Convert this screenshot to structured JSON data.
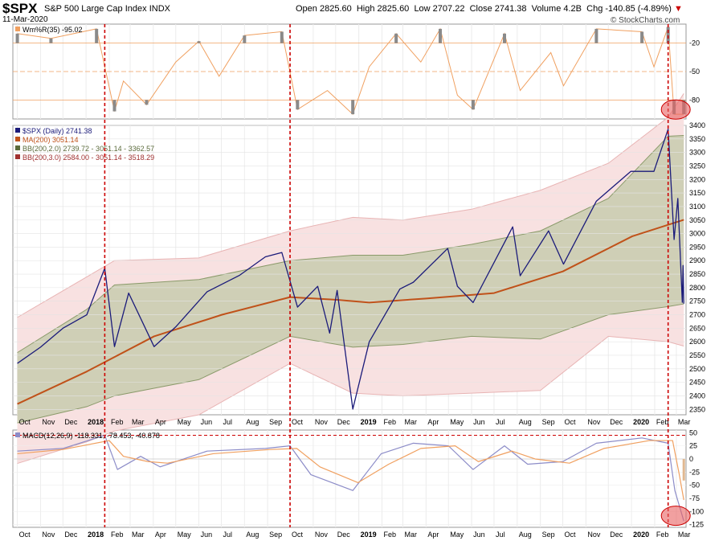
{
  "header": {
    "symbol": "$SPX",
    "description": "S&P 500 Large Cap Index",
    "exchange": "INDX",
    "date": "11-Mar-2020",
    "open": "Open 2825.60",
    "high": "High 2825.60",
    "low": "Low 2707.22",
    "close": "Close 2741.38",
    "volume": "Volume 4.2B",
    "change": "Chg -140.85 (-4.89%)",
    "change_arrow": "▼",
    "credit": "© StockCharts.com"
  },
  "colors": {
    "price": "#1b1b7a",
    "ma200": "#c0521a",
    "bb2_fill": "#cfcfb6",
    "bb2_line": "#8a9a6a",
    "bb3_fill": "#f8e1e1",
    "bb3_line": "#e8b4b4",
    "willr": "#f0a060",
    "willr_fill": "#8a8a8a",
    "macd": "#8c8cc8",
    "signal": "#f0a060",
    "histogram": "#e0b890",
    "marker": "#cc0000",
    "highlight": "#e86060"
  },
  "x_axis": {
    "labels": [
      "Oct",
      "Nov",
      "Dec",
      "2018",
      "Feb",
      "Mar",
      "Apr",
      "May",
      "Jun",
      "Jul",
      "Aug",
      "Sep",
      "Oct",
      "Nov",
      "Dec",
      "2019",
      "Feb",
      "Mar",
      "Apr",
      "May",
      "Jun",
      "Jul",
      "Aug",
      "Sep",
      "Oct",
      "Nov",
      "Dec",
      "2020",
      "Feb",
      "Mar"
    ]
  },
  "chart_data": [
    {
      "type": "line",
      "panel": "willr",
      "legend": "Wm%R(35) -95.02",
      "yticks": [
        -20,
        -50,
        -80
      ],
      "ylim": [
        -100,
        0
      ],
      "series": [
        {
          "name": "Wm%R(35)",
          "x": [
            "2017-10-01",
            "2017-11-15",
            "2018-01-15",
            "2018-02-08",
            "2018-02-20",
            "2018-03-23",
            "2018-05-01",
            "2018-06-01",
            "2018-06-28",
            "2018-08-01",
            "2018-09-20",
            "2018-10-11",
            "2018-11-20",
            "2018-12-24",
            "2019-01-15",
            "2019-02-20",
            "2019-03-25",
            "2019-04-20",
            "2019-05-13",
            "2019-06-03",
            "2019-07-15",
            "2019-08-05",
            "2019-09-15",
            "2019-10-02",
            "2019-11-15",
            "2020-01-15",
            "2020-01-31",
            "2020-02-19",
            "2020-02-27",
            "2020-03-11"
          ],
          "values": [
            -10,
            -15,
            -5,
            -92,
            -60,
            -85,
            -40,
            -18,
            -55,
            -12,
            -8,
            -90,
            -70,
            -95,
            -45,
            -10,
            -40,
            -5,
            -75,
            -90,
            -10,
            -70,
            -30,
            -65,
            -5,
            -8,
            -45,
            -3,
            -95,
            -95
          ]
        }
      ],
      "legend_values": [
        "-95.02"
      ]
    },
    {
      "type": "line",
      "panel": "price",
      "ylim": [
        2330,
        3400
      ],
      "yticks": [
        2350,
        2400,
        2450,
        2500,
        2550,
        2600,
        2650,
        2700,
        2750,
        2800,
        2850,
        2900,
        2950,
        3000,
        3050,
        3100,
        3150,
        3200,
        3250,
        3300,
        3350,
        3400
      ],
      "legend": [
        "$SPX (Daily) 2741.38",
        "MA(200) 3051.14",
        "BB(200,2.0) 2739.72 - 3051.14 - 3362.57",
        "BB(200,3.0) 2584.00 - 3051.14 - 3518.29"
      ],
      "series": [
        {
          "name": "$SPX (Daily)",
          "x": [
            "2017-10-01",
            "2017-11-01",
            "2017-12-01",
            "2018-01-02",
            "2018-01-26",
            "2018-02-08",
            "2018-02-27",
            "2018-04-02",
            "2018-05-01",
            "2018-06-12",
            "2018-07-25",
            "2018-08-29",
            "2018-09-20",
            "2018-10-11",
            "2018-11-07",
            "2018-11-23",
            "2018-12-03",
            "2018-12-24",
            "2019-01-15",
            "2019-02-25",
            "2019-03-15",
            "2019-04-30",
            "2019-05-13",
            "2019-06-03",
            "2019-07-26",
            "2019-08-05",
            "2019-09-12",
            "2019-10-02",
            "2019-11-15",
            "2019-12-31",
            "2020-01-31",
            "2020-02-19",
            "2020-02-27",
            "2020-03-03",
            "2020-03-09",
            "2020-03-10",
            "2020-03-11"
          ],
          "values": [
            2520,
            2580,
            2650,
            2700,
            2872,
            2582,
            2780,
            2582,
            2655,
            2785,
            2845,
            2914,
            2930,
            2728,
            2805,
            2632,
            2790,
            2351,
            2600,
            2795,
            2820,
            2945,
            2805,
            2745,
            3025,
            2844,
            3010,
            2887,
            3120,
            3230,
            3230,
            3386,
            2978,
            3130,
            2746,
            2882,
            2741
          ]
        },
        {
          "name": "MA(200)",
          "x": [
            "2017-10-01",
            "2018-01-02",
            "2018-04-02",
            "2018-07-02",
            "2018-10-01",
            "2018-12-03",
            "2019-01-15",
            "2019-04-01",
            "2019-07-01",
            "2019-10-01",
            "2020-01-02",
            "2020-03-11"
          ],
          "values": [
            2370,
            2490,
            2620,
            2700,
            2765,
            2755,
            2745,
            2760,
            2780,
            2860,
            2990,
            3051
          ]
        },
        {
          "name": "BB(200,2.0)",
          "x": [
            "2017-10-01",
            "2018-01-02",
            "2018-02-08",
            "2018-06-01",
            "2018-10-01",
            "2018-12-24",
            "2019-03-01",
            "2019-06-01",
            "2019-09-01",
            "2019-12-01",
            "2020-02-19",
            "2020-03-11"
          ],
          "upper": [
            2560,
            2720,
            2810,
            2830,
            2900,
            2920,
            2920,
            2960,
            3010,
            3130,
            3360,
            3363
          ],
          "lower": [
            2300,
            2360,
            2400,
            2460,
            2620,
            2580,
            2590,
            2620,
            2610,
            2700,
            2730,
            2740
          ]
        },
        {
          "name": "BB(200,3.0)",
          "x": [
            "2017-10-01",
            "2018-01-02",
            "2018-02-08",
            "2018-06-01",
            "2018-10-01",
            "2018-12-24",
            "2019-03-01",
            "2019-06-01",
            "2019-09-01",
            "2019-12-01",
            "2020-02-19",
            "2020-03-11"
          ],
          "upper": [
            2690,
            2840,
            2900,
            2910,
            3010,
            3060,
            3050,
            3090,
            3160,
            3260,
            3430,
            3518
          ],
          "lower": [
            2150,
            2230,
            2270,
            2330,
            2520,
            2410,
            2400,
            2410,
            2420,
            2620,
            2600,
            2584
          ]
        }
      ]
    },
    {
      "type": "line",
      "panel": "macd",
      "legend": "MACD(12,26,9) -118.331, -78.453, -40.878",
      "ylim": [
        -130,
        55
      ],
      "yticks": [
        50,
        25,
        0,
        -25,
        -50,
        -75,
        -100,
        -125
      ],
      "series": [
        {
          "name": "MACD",
          "x": [
            "2017-10-01",
            "2017-12-01",
            "2018-01-26",
            "2018-02-12",
            "2018-03-15",
            "2018-04-10",
            "2018-06-12",
            "2018-08-29",
            "2018-10-01",
            "2018-10-29",
            "2018-12-24",
            "2019-01-31",
            "2019-03-15",
            "2019-05-01",
            "2019-06-03",
            "2019-07-15",
            "2019-08-15",
            "2019-10-01",
            "2019-11-15",
            "2020-01-15",
            "2020-02-19",
            "2020-02-28",
            "2020-03-11"
          ],
          "values": [
            15,
            20,
            45,
            -20,
            5,
            -15,
            15,
            20,
            25,
            -30,
            -60,
            10,
            30,
            25,
            -20,
            25,
            -10,
            -5,
            30,
            40,
            30,
            -60,
            -118
          ]
        },
        {
          "name": "Signal",
          "x": [
            "2017-10-01",
            "2017-12-01",
            "2018-02-01",
            "2018-02-20",
            "2018-03-25",
            "2018-04-20",
            "2018-06-20",
            "2018-09-05",
            "2018-10-10",
            "2018-11-10",
            "2018-12-31",
            "2019-02-10",
            "2019-03-25",
            "2019-05-10",
            "2019-06-10",
            "2019-07-25",
            "2019-08-25",
            "2019-10-10",
            "2019-11-25",
            "2020-01-25",
            "2020-02-25",
            "2020-03-05",
            "2020-03-11"
          ],
          "values": [
            10,
            18,
            35,
            5,
            -5,
            -8,
            10,
            18,
            20,
            -15,
            -45,
            -10,
            20,
            25,
            -5,
            15,
            0,
            -8,
            20,
            35,
            35,
            -30,
            -78
          ]
        }
      ],
      "histogram_min": -41,
      "legend_values": [
        "-118.331",
        "-78.453",
        "-40.878"
      ]
    }
  ],
  "annotations": {
    "markers": [
      "2018-01-26",
      "2018-10-01",
      "2020-02-19"
    ],
    "highlights": [
      "2020-03-11"
    ]
  }
}
